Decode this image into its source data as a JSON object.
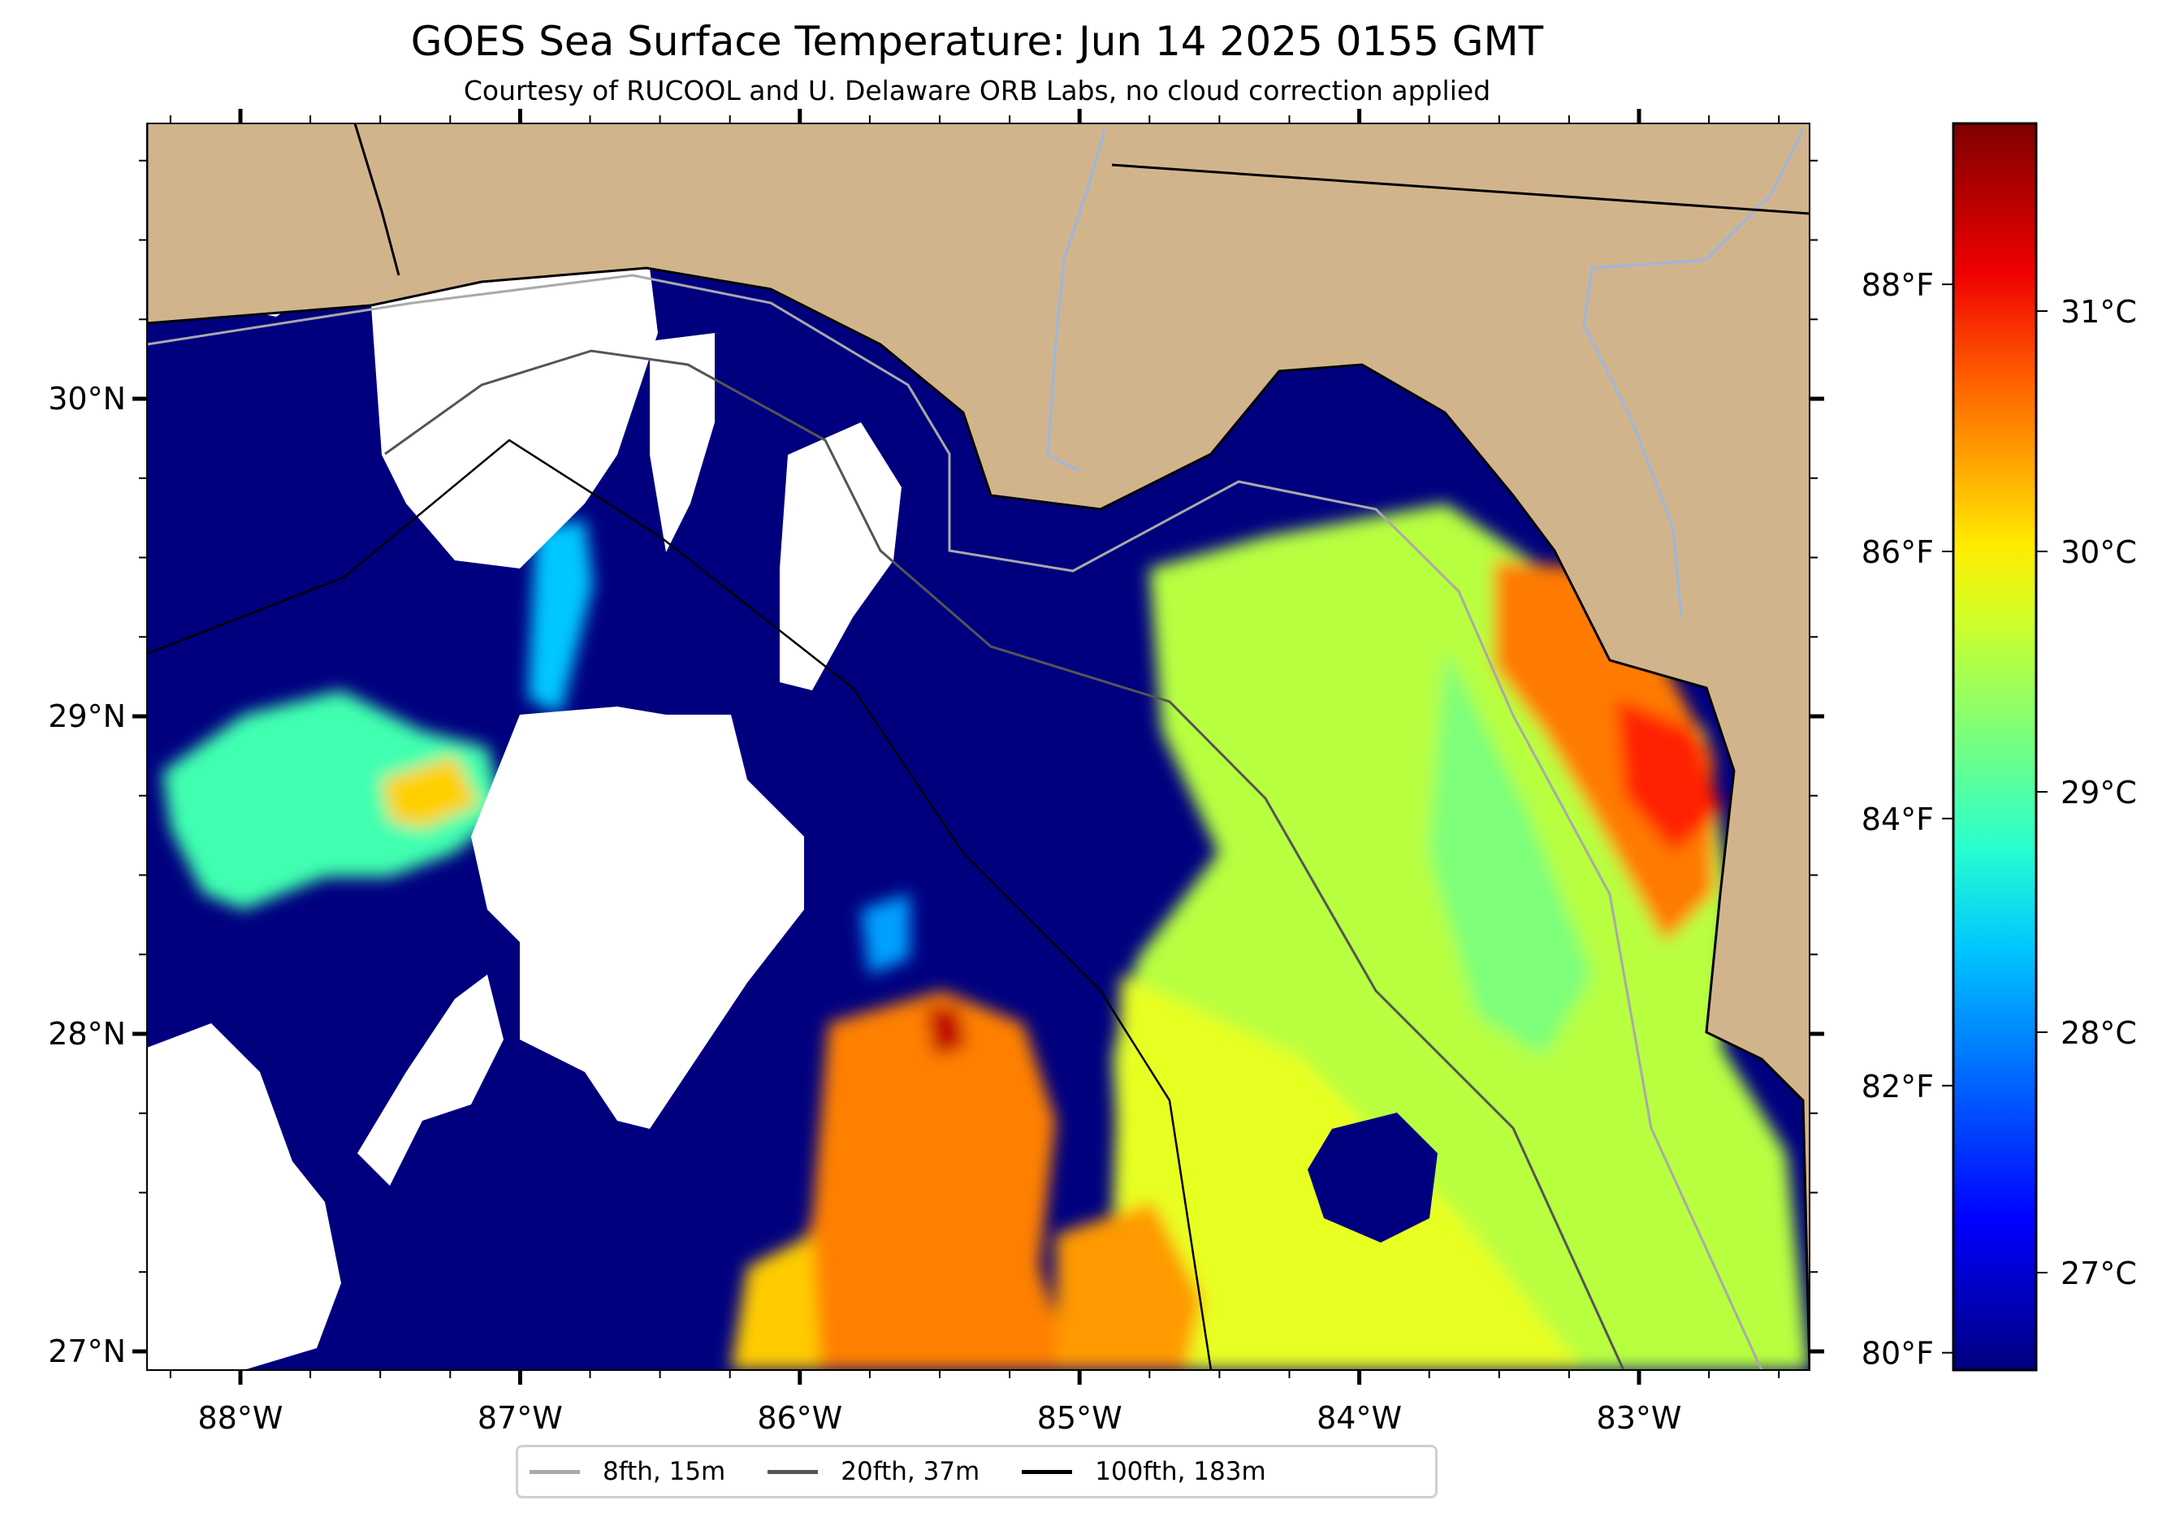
{
  "chart_data": {
    "type": "heatmap",
    "title": "GOES Sea Surface Temperature: Jun 14 2025 0155 GMT",
    "subtitle": "Courtesy of RUCOOL and U. Delaware ORB Labs, no cloud correction applied",
    "xlabel": "",
    "ylabel": "",
    "xlim": [
      -88.33,
      -82.39
    ],
    "ylim": [
      26.94,
      30.86
    ],
    "x_ticks": [
      {
        "value": -88,
        "label": "88°W"
      },
      {
        "value": -87,
        "label": "87°W"
      },
      {
        "value": -86,
        "label": "86°W"
      },
      {
        "value": -85,
        "label": "85°W"
      },
      {
        "value": -84,
        "label": "84°W"
      },
      {
        "value": -83,
        "label": "83°W"
      }
    ],
    "y_ticks": [
      {
        "value": 30,
        "label": "30°N"
      },
      {
        "value": 29,
        "label": "29°N"
      },
      {
        "value": 28,
        "label": "28°N"
      },
      {
        "value": 27,
        "label": "27°N"
      }
    ],
    "colorbar": {
      "colormap": "jet",
      "range_c": [
        26.6,
        31.78
      ],
      "celsius_ticks": [
        {
          "value": 31,
          "label": "31°C"
        },
        {
          "value": 30,
          "label": "30°C"
        },
        {
          "value": 29,
          "label": "29°C"
        },
        {
          "value": 28,
          "label": "28°C"
        },
        {
          "value": 27,
          "label": "27°C"
        }
      ],
      "fahrenheit_ticks": [
        {
          "value": 88,
          "label": "88°F"
        },
        {
          "value": 86,
          "label": "86°F"
        },
        {
          "value": 84,
          "label": "84°F"
        },
        {
          "value": 82,
          "label": "82°F"
        },
        {
          "value": 80,
          "label": "80°F"
        }
      ]
    },
    "legend": {
      "placement": "bottom-center",
      "entries": [
        {
          "label": "8fth, 15m",
          "color": "#a9a9a9"
        },
        {
          "label": "20fth, 37m",
          "color": "#555555"
        },
        {
          "label": "100fth, 183m",
          "color": "#000000"
        }
      ]
    },
    "colors": {
      "land": "#d2b48c",
      "cloud": "#ffffff",
      "cold_water": "#00007f",
      "rivers": "#9ab8e0"
    }
  }
}
